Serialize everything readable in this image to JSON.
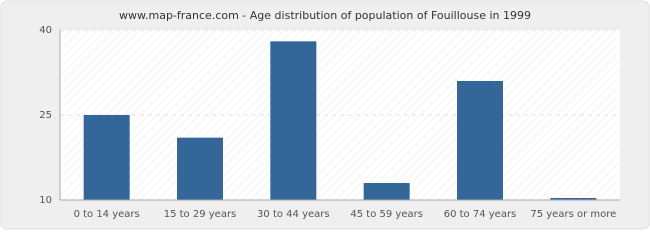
{
  "chart_data": {
    "type": "bar",
    "title": "www.map-france.com - Age distribution of population of Fouillouse in 1999",
    "categories": [
      "0 to 14 years",
      "15 to 29 years",
      "30 to 44 years",
      "45 to 59 years",
      "60 to 74 years",
      "75 years or more"
    ],
    "values": [
      25,
      21,
      38,
      13,
      31,
      10
    ],
    "color": "#336699",
    "ylim": [
      10,
      40
    ],
    "yticks": [
      10,
      25,
      40
    ],
    "grid": true
  }
}
